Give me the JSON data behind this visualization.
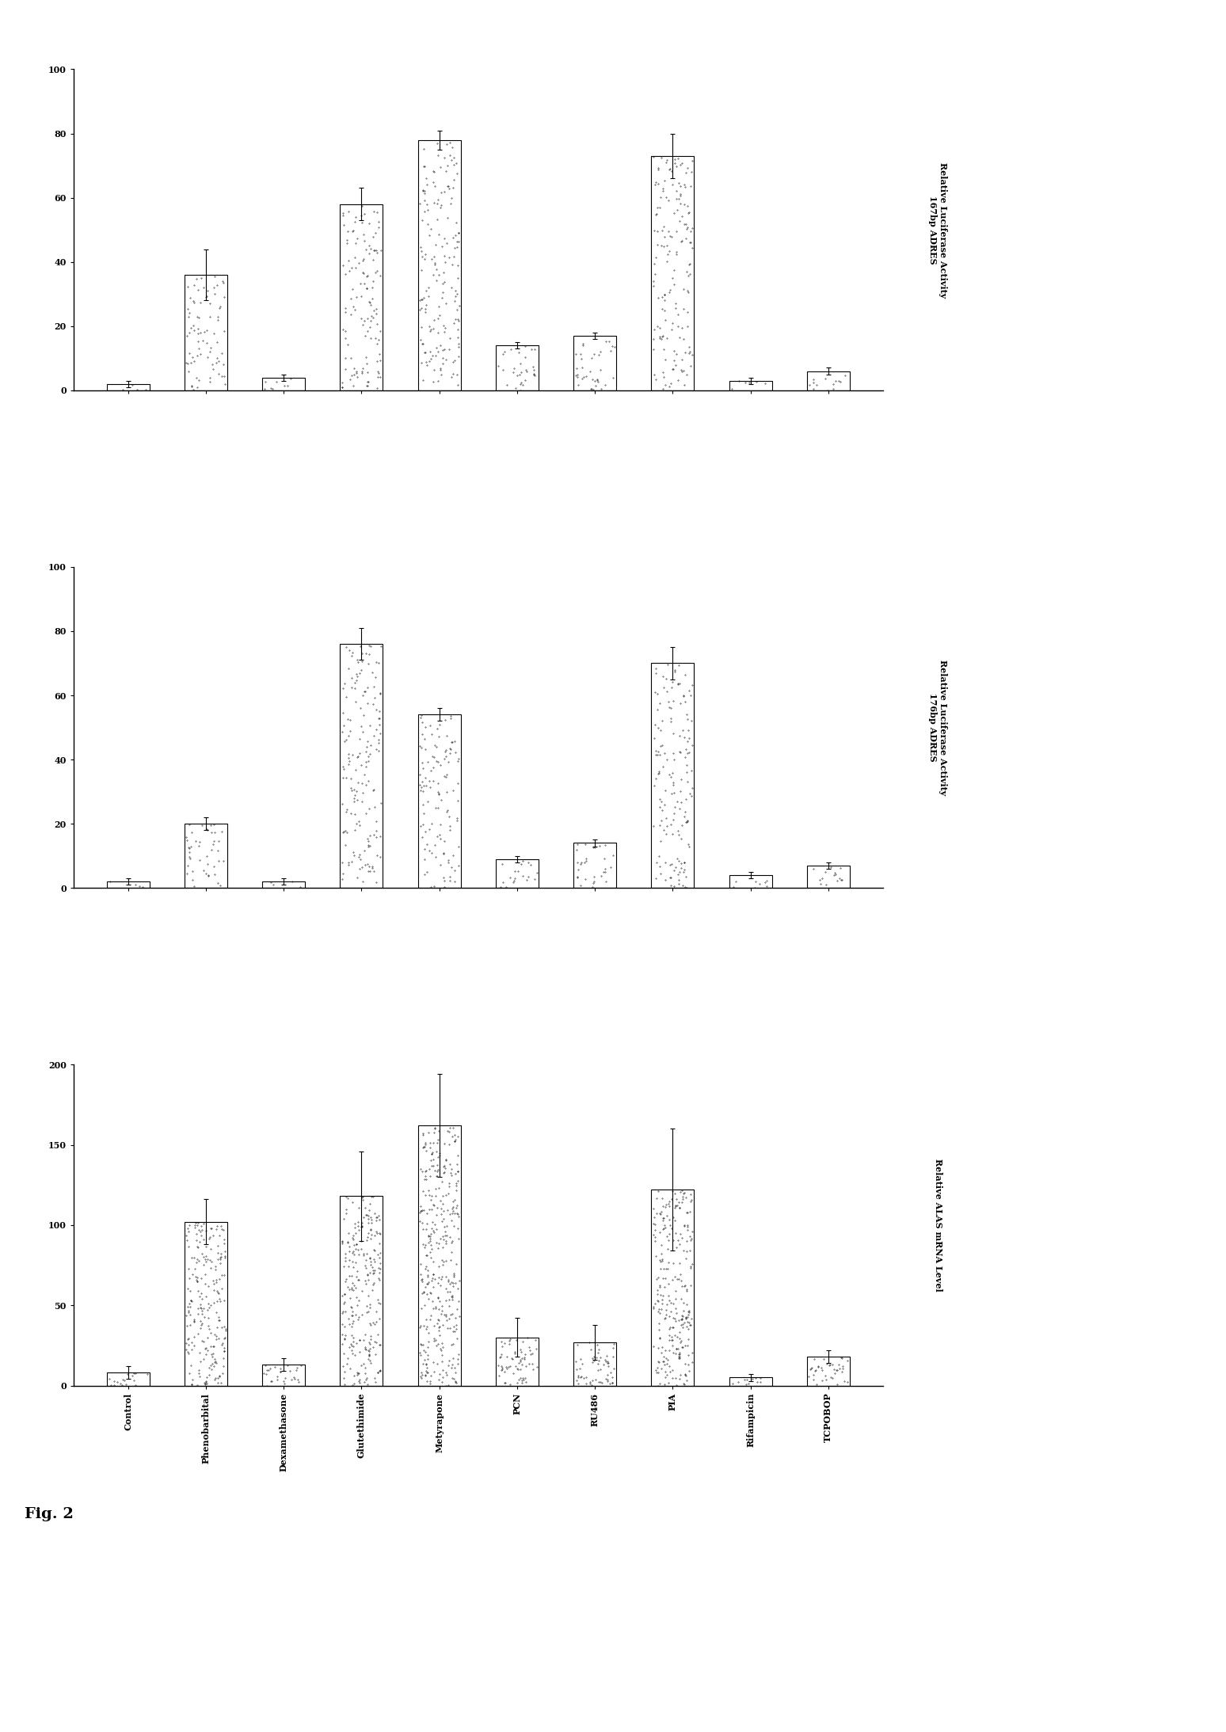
{
  "categories": [
    "Control",
    "Phenobarbital",
    "Dexamethasone",
    "Glutethimide",
    "Metyrapone",
    "PCN",
    "RU486",
    "PIA",
    "Rifampicin",
    "TCPOBOP"
  ],
  "panel3_values": [
    2,
    36,
    4,
    58,
    78,
    14,
    17,
    73,
    3,
    6
  ],
  "panel3_errors": [
    1,
    8,
    1,
    5,
    3,
    1,
    1,
    7,
    1,
    1
  ],
  "panel3_ylabel": "Relative Luciferase Activity\n167bp ADRES",
  "panel3_ylim": [
    0,
    100
  ],
  "panel3_yticks": [
    0,
    20,
    40,
    60,
    80,
    100
  ],
  "panel2_values": [
    2,
    20,
    2,
    76,
    54,
    9,
    14,
    70,
    4,
    7
  ],
  "panel2_errors": [
    1,
    2,
    1,
    5,
    2,
    1,
    1,
    5,
    1,
    1
  ],
  "panel2_ylabel": "Relative Luciferase Activity\n176bp ADRES",
  "panel2_ylim": [
    0,
    100
  ],
  "panel2_yticks": [
    0,
    20,
    40,
    60,
    80,
    100
  ],
  "panel1_values": [
    8,
    102,
    13,
    118,
    162,
    30,
    27,
    122,
    5,
    18
  ],
  "panel1_errors": [
    4,
    14,
    4,
    28,
    32,
    12,
    11,
    38,
    2,
    4
  ],
  "panel1_ylabel": "Relative ALAS mRNA Level",
  "panel1_ylim": [
    0,
    200
  ],
  "panel1_yticks": [
    0,
    50,
    100,
    150,
    200
  ],
  "bar_width": 0.55,
  "fig_title": "Fig. 2",
  "background_color": "#ffffff"
}
